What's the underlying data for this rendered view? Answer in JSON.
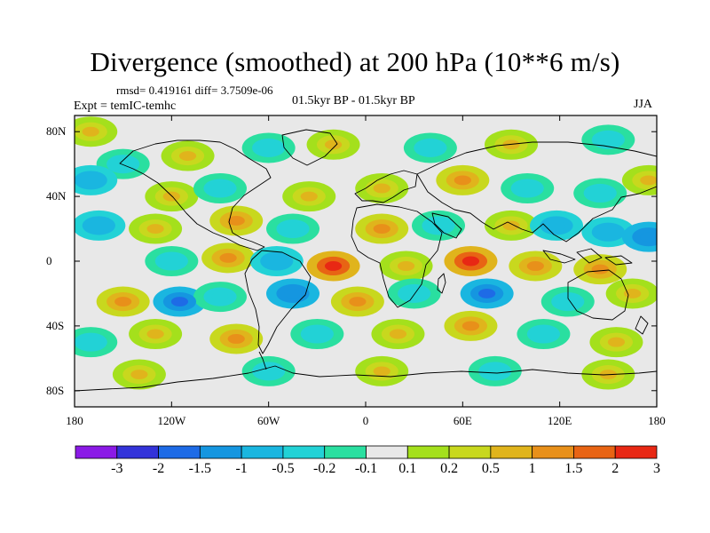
{
  "title": "Divergence (smoothed) at 200 hPa (10**6 m/s)",
  "stats": "rmsd= 0.419161  diff= 3.7509e-06",
  "experiment": "Expt = temIC-temhc",
  "period": "01.5kyr BP - 01.5kyr BP",
  "season": "JJA",
  "lat_labels": [
    {
      "lat": 80,
      "text": "80N"
    },
    {
      "lat": 40,
      "text": "40N"
    },
    {
      "lat": 0,
      "text": "0"
    },
    {
      "lat": -40,
      "text": "40S"
    },
    {
      "lat": -80,
      "text": "80S"
    }
  ],
  "lon_labels": [
    {
      "lon": -180,
      "text": "180"
    },
    {
      "lon": -120,
      "text": "120W"
    },
    {
      "lon": -60,
      "text": "60W"
    },
    {
      "lon": 0,
      "text": "0"
    },
    {
      "lon": 60,
      "text": "60E"
    },
    {
      "lon": 120,
      "text": "120E"
    },
    {
      "lon": 180,
      "text": "180"
    }
  ],
  "colorbar": {
    "levels": [
      "-3",
      "-2",
      "-1.5",
      "-1",
      "-0.5",
      "-0.2",
      "-0.1",
      "0.1",
      "0.2",
      "0.5",
      "1",
      "1.5",
      "2",
      "3"
    ],
    "colors": [
      "#8b1ae6",
      "#3333d9",
      "#1e6be6",
      "#1596e0",
      "#1ab6e0",
      "#22d2d6",
      "#2adfa0",
      "#e8e8e8",
      "#a4e01c",
      "#c8d81e",
      "#e0b41c",
      "#e8901a",
      "#e86414",
      "#e82814"
    ]
  },
  "chart_data": {
    "type": "heatmap",
    "title": "Divergence (smoothed) at 200 hPa (10**6 m/s)",
    "projection": "cylindrical equidistant",
    "lon_range": [
      -180,
      180
    ],
    "lat_range": [
      -90,
      90
    ],
    "features": [
      {
        "lon": -170,
        "lat": 80,
        "value": 0.5
      },
      {
        "lon": -150,
        "lat": 60,
        "value": -0.5
      },
      {
        "lon": -110,
        "lat": 65,
        "value": 0.5
      },
      {
        "lon": -60,
        "lat": 70,
        "value": -0.5
      },
      {
        "lon": -20,
        "lat": 72,
        "value": 0.5
      },
      {
        "lon": 40,
        "lat": 70,
        "value": -0.5
      },
      {
        "lon": 90,
        "lat": 72,
        "value": 0.5
      },
      {
        "lon": 150,
        "lat": 75,
        "value": -0.5
      },
      {
        "lon": -170,
        "lat": 50,
        "value": -1
      },
      {
        "lon": -120,
        "lat": 40,
        "value": 0.5
      },
      {
        "lon": -90,
        "lat": 45,
        "value": -0.5
      },
      {
        "lon": -35,
        "lat": 40,
        "value": 0.5
      },
      {
        "lon": 10,
        "lat": 45,
        "value": 0.5
      },
      {
        "lon": 60,
        "lat": 50,
        "value": 1
      },
      {
        "lon": 100,
        "lat": 45,
        "value": -0.5
      },
      {
        "lon": 145,
        "lat": 42,
        "value": -0.5
      },
      {
        "lon": 175,
        "lat": 50,
        "value": 0.5
      },
      {
        "lon": -165,
        "lat": 22,
        "value": -1
      },
      {
        "lon": -130,
        "lat": 20,
        "value": 0.5
      },
      {
        "lon": -80,
        "lat": 25,
        "value": 1
      },
      {
        "lon": -45,
        "lat": 20,
        "value": -0.5
      },
      {
        "lon": 10,
        "lat": 20,
        "value": 1
      },
      {
        "lon": 45,
        "lat": 22,
        "value": -0.5
      },
      {
        "lon": 90,
        "lat": 22,
        "value": 0.5
      },
      {
        "lon": 118,
        "lat": 22,
        "value": -1
      },
      {
        "lon": 150,
        "lat": 18,
        "value": -1
      },
      {
        "lon": 175,
        "lat": 15,
        "value": -1.5
      },
      {
        "lon": -120,
        "lat": 0,
        "value": -0.5
      },
      {
        "lon": -85,
        "lat": 2,
        "value": 1
      },
      {
        "lon": -55,
        "lat": 0,
        "value": -1
      },
      {
        "lon": -20,
        "lat": -3,
        "value": 2
      },
      {
        "lon": 25,
        "lat": -3,
        "value": 0.5
      },
      {
        "lon": 65,
        "lat": 0,
        "value": 2
      },
      {
        "lon": 105,
        "lat": -3,
        "value": 1
      },
      {
        "lon": 145,
        "lat": -5,
        "value": 1
      },
      {
        "lon": -150,
        "lat": -25,
        "value": 1
      },
      {
        "lon": -115,
        "lat": -25,
        "value": -2
      },
      {
        "lon": -90,
        "lat": -22,
        "value": -0.5
      },
      {
        "lon": -45,
        "lat": -20,
        "value": -1.5
      },
      {
        "lon": -5,
        "lat": -25,
        "value": 1
      },
      {
        "lon": 30,
        "lat": -20,
        "value": -0.5
      },
      {
        "lon": 75,
        "lat": -20,
        "value": -2
      },
      {
        "lon": 125,
        "lat": -25,
        "value": -0.5
      },
      {
        "lon": 165,
        "lat": -20,
        "value": 0.5
      },
      {
        "lon": -170,
        "lat": -50,
        "value": -0.5
      },
      {
        "lon": -130,
        "lat": -45,
        "value": 0.5
      },
      {
        "lon": -80,
        "lat": -48,
        "value": 1
      },
      {
        "lon": -30,
        "lat": -45,
        "value": -0.5
      },
      {
        "lon": 20,
        "lat": -45,
        "value": 0.5
      },
      {
        "lon": 65,
        "lat": -40,
        "value": 1
      },
      {
        "lon": 110,
        "lat": -45,
        "value": -0.5
      },
      {
        "lon": 155,
        "lat": -50,
        "value": 0.5
      },
      {
        "lon": -140,
        "lat": -70,
        "value": 0.5
      },
      {
        "lon": -60,
        "lat": -68,
        "value": -0.5
      },
      {
        "lon": 10,
        "lat": -68,
        "value": 0.5
      },
      {
        "lon": 80,
        "lat": -68,
        "value": -0.5
      },
      {
        "lon": 150,
        "lat": -70,
        "value": 0.5
      }
    ]
  }
}
